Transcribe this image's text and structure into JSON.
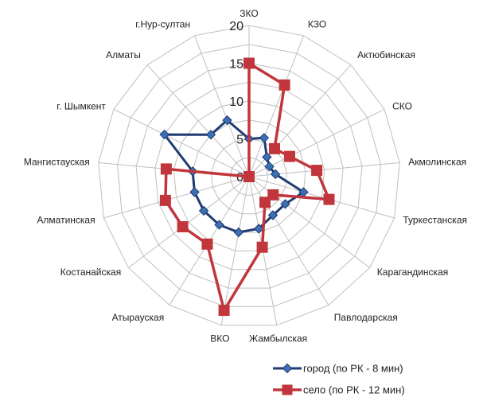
{
  "chart_data": {
    "type": "radar",
    "categories": [
      "ЗКО",
      "КЗО",
      "Актюбинская",
      "СКО",
      "Акмолинская",
      "Туркестанская",
      "Карагандинская",
      "Павлодарская",
      "Жамбылская",
      "ВКО",
      "Атырауская",
      "Костанайская",
      "Алматинская",
      "Мангистауская",
      "г. Шымкент",
      "Алматы",
      "г.Нур-султан"
    ],
    "series": [
      {
        "name": "город (по РК - 8 мин)",
        "color": "#1f3c73",
        "marker": "diamond",
        "values": [
          5,
          5.5,
          3.5,
          3,
          3.5,
          7.5,
          6,
          6,
          7,
          7.5,
          7.5,
          7.5,
          7.5,
          7.5,
          12.5,
          7.5,
          8
        ]
      },
      {
        "name": "село (по РК - 12 мин)",
        "color": "#c1363c",
        "marker": "square",
        "values": [
          15,
          13,
          5,
          6,
          9,
          11,
          4,
          4,
          9.5,
          18,
          10.5,
          11,
          11.5,
          11,
          0,
          0,
          0
        ]
      }
    ],
    "rlim": [
      0,
      20
    ],
    "ticks": [
      "0",
      "5",
      "10",
      "15",
      "20"
    ],
    "tick_values": [
      0,
      5,
      10,
      15,
      20
    ],
    "legend_placement": "bottom-right",
    "grid": true
  }
}
